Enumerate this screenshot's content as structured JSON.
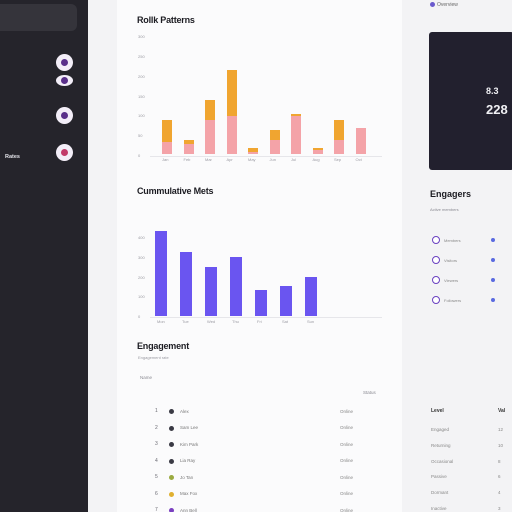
{
  "sidebar": {
    "active_label": "Rates",
    "icons": [
      "compass-icon",
      "cloud-icon",
      "drop-icon",
      "heart-icon"
    ]
  },
  "chart1": {
    "title": "Rollk Patterns",
    "y_labels": [
      "300",
      "250",
      "200",
      "150",
      "100",
      "50",
      "0"
    ],
    "x_labels": [
      "Jan",
      "Feb",
      "Mar",
      "Apr",
      "May",
      "Jun",
      "Jul",
      "Aug",
      "Sep",
      "Oct"
    ]
  },
  "chart2": {
    "title": "Cummulative Mets",
    "y_labels": [
      "400",
      "300",
      "200",
      "100",
      "0"
    ],
    "x_labels": [
      "Mon",
      "Tue",
      "Wed",
      "Thu",
      "Fri",
      "Sat",
      "Sun"
    ]
  },
  "chart_data": [
    {
      "type": "bar",
      "title": "Rollk Patterns",
      "categories": [
        "Jan",
        "Feb",
        "Mar",
        "Apr",
        "May",
        "Jun",
        "Jul",
        "Aug",
        "Sep",
        "Oct"
      ],
      "series": [
        {
          "color": "#f4a3a8",
          "values": [
            30,
            25,
            85,
            95,
            5,
            35,
            95,
            10,
            35,
            65
          ]
        },
        {
          "color": "#f0a530",
          "values": [
            55,
            10,
            50,
            115,
            10,
            25,
            5,
            5,
            50,
            0
          ]
        }
      ],
      "ylim": [
        0,
        300
      ]
    },
    {
      "type": "bar",
      "title": "Cummulative Mets",
      "categories": [
        "Mon",
        "Tue",
        "Wed",
        "Thu",
        "Fri",
        "Sat",
        "Sun"
      ],
      "values": [
        360,
        270,
        205,
        250,
        110,
        125,
        165
      ],
      "color": "#6a55f0",
      "ylim": [
        0,
        400
      ]
    }
  ],
  "engagement": {
    "title": "Engagement",
    "subtitle": "Engagement rate",
    "header_left": "Name",
    "header_right": "Status",
    "rows": [
      {
        "num": "1",
        "name": "Alex",
        "value": "Online",
        "color": "#3a3a44"
      },
      {
        "num": "2",
        "name": "Sam Lee",
        "value": "Online",
        "color": "#3a3a44"
      },
      {
        "num": "3",
        "name": "Kim Park",
        "value": "Online",
        "color": "#3a3a44"
      },
      {
        "num": "4",
        "name": "Lia Ray",
        "value": "Online",
        "color": "#3a3a44"
      },
      {
        "num": "5",
        "name": "Jo Tan",
        "value": "Online",
        "color": "#9aaa40"
      },
      {
        "num": "6",
        "name": "Max Fox",
        "value": "Online",
        "color": "#e0b030"
      },
      {
        "num": "7",
        "name": "Ann Bell",
        "value": "Online",
        "color": "#7a40c0"
      }
    ]
  },
  "right": {
    "top_label": "Overview",
    "stat_a": "8.3",
    "stat_b": "228",
    "title": "Engagers",
    "subtitle": "Active members",
    "items": [
      {
        "name": "Members"
      },
      {
        "name": "Visitors"
      },
      {
        "name": "Viewers"
      },
      {
        "name": "Followers"
      }
    ],
    "head_left": "Level",
    "head_right": "Val",
    "list": [
      {
        "name": "Engaged",
        "value": "12"
      },
      {
        "name": "Returning",
        "value": "10"
      },
      {
        "name": "Occasional",
        "value": "8"
      },
      {
        "name": "Passive",
        "value": "6"
      },
      {
        "name": "Dormant",
        "value": "4"
      },
      {
        "name": "Inactive",
        "value": "3"
      },
      {
        "name": "New",
        "value": "2"
      }
    ]
  }
}
